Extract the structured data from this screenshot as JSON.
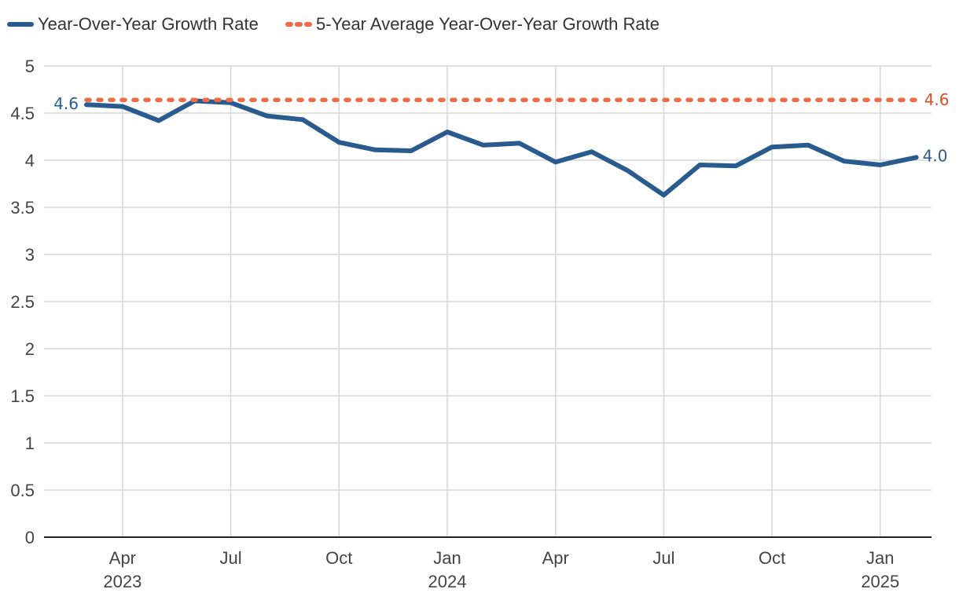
{
  "chart_data": {
    "type": "line",
    "title": "",
    "xlabel": "",
    "ylabel": "",
    "ylim": [
      0,
      5
    ],
    "y_ticks": [
      "0",
      "0.5",
      "1",
      "1.5",
      "2",
      "2.5",
      "3",
      "3.5",
      "4",
      "4.5",
      "5"
    ],
    "x_tick_labels": [
      {
        "month": "Apr",
        "year": "2023",
        "index": 1
      },
      {
        "month": "Jul",
        "year": "",
        "index": 4
      },
      {
        "month": "Oct",
        "year": "",
        "index": 7
      },
      {
        "month": "Jan",
        "year": "2024",
        "index": 10
      },
      {
        "month": "Apr",
        "year": "",
        "index": 13
      },
      {
        "month": "Jul",
        "year": "",
        "index": 16
      },
      {
        "month": "Oct",
        "year": "",
        "index": 19
      },
      {
        "month": "Jan",
        "year": "2025",
        "index": 22
      }
    ],
    "x": [
      "2023-03",
      "2023-04",
      "2023-05",
      "2023-06",
      "2023-07",
      "2023-08",
      "2023-09",
      "2023-10",
      "2023-11",
      "2023-12",
      "2024-01",
      "2024-02",
      "2024-03",
      "2024-04",
      "2024-05",
      "2024-06",
      "2024-07",
      "2024-08",
      "2024-09",
      "2024-10",
      "2024-11",
      "2024-12",
      "2025-01",
      "2025-02"
    ],
    "series": [
      {
        "name": "Year-Over-Year Growth Rate",
        "color": "#2a5b8e",
        "style": "solid",
        "values": [
          4.59,
          4.57,
          4.42,
          4.63,
          4.61,
          4.47,
          4.43,
          4.19,
          4.11,
          4.1,
          4.3,
          4.16,
          4.18,
          3.98,
          4.09,
          3.89,
          3.63,
          3.95,
          3.94,
          4.14,
          4.16,
          3.99,
          3.95,
          4.03
        ],
        "start_label": "4.6",
        "end_label": "4.0"
      },
      {
        "name": "5-Year Average Year-Over-Year Growth Rate",
        "color": "#ee6b45",
        "style": "dotted",
        "values": [
          4.64,
          4.64,
          4.64,
          4.64,
          4.64,
          4.64,
          4.64,
          4.64,
          4.64,
          4.64,
          4.64,
          4.64,
          4.64,
          4.64,
          4.64,
          4.64,
          4.64,
          4.64,
          4.64,
          4.64,
          4.64,
          4.64,
          4.64,
          4.64
        ],
        "end_label": "4.6",
        "end_label_color": "#d94f2a"
      }
    ],
    "legend": {
      "position": "top-left",
      "items": [
        {
          "label": "Year-Over-Year Growth Rate"
        },
        {
          "label": "5-Year Average Year-Over-Year Growth Rate"
        }
      ]
    },
    "grid": true,
    "colors": {
      "grid": "#d6d6d6",
      "axis": "#222222",
      "tick_text": "#444444"
    }
  }
}
